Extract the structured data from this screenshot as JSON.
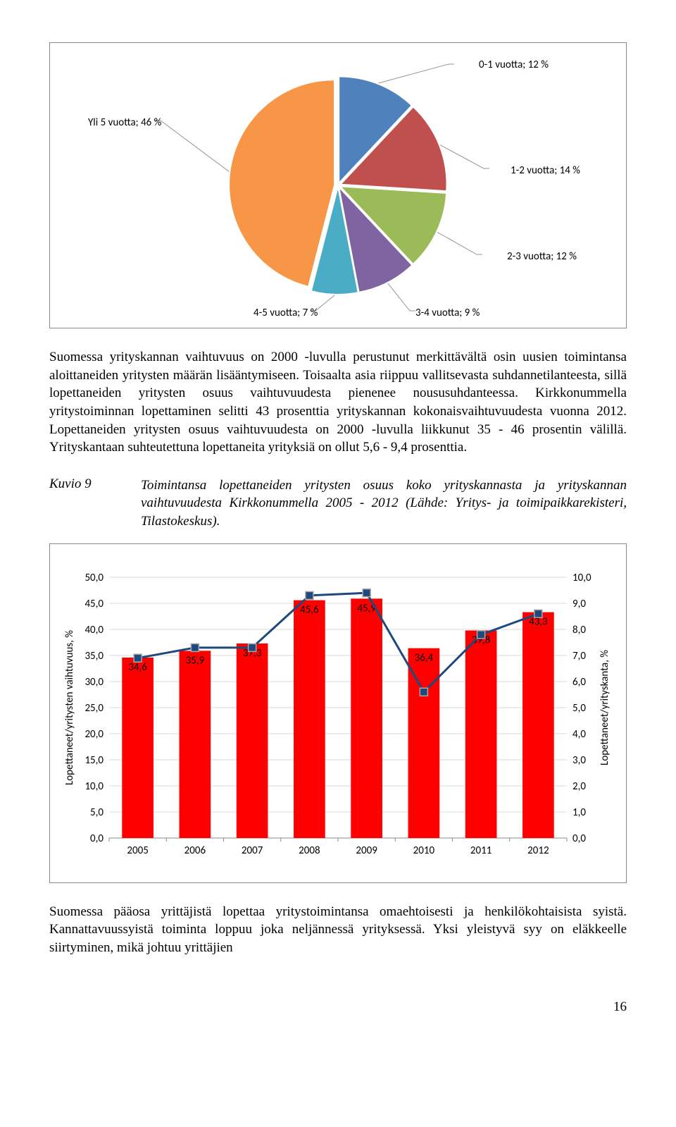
{
  "pie_chart": {
    "type": "pie",
    "explode": 0.04,
    "start_angle_deg": 90,
    "slices": [
      {
        "label": "0-1 vuotta; 12 %",
        "value": 12,
        "color": "#4f81bd"
      },
      {
        "label": "1-2 vuotta; 14 %",
        "value": 14,
        "color": "#c0504d"
      },
      {
        "label": "2-3 vuotta; 12 %",
        "value": 12,
        "color": "#9bbb59"
      },
      {
        "label": "3-4 vuotta; 9 %",
        "value": 9,
        "color": "#8064a2"
      },
      {
        "label": "4-5 vuotta; 7 %",
        "value": 7,
        "color": "#4bacc6"
      },
      {
        "label": "Yli 5 vuotta; 46 %",
        "value": 46,
        "color": "#f79646"
      }
    ],
    "label_font": "Calibri",
    "label_fontsize": 15,
    "leader_color": "#969696",
    "border_color": "#888888",
    "background_color": "#ffffff"
  },
  "para1": "Suomessa yrityskannan vaihtuvuus on 2000 -luvulla perustunut merkittävältä osin uusien toimintansa aloittaneiden yritysten määrän lisääntymiseen. Toisaalta asia riippuu vallitsevasta suhdannetilanteesta, sillä lopettaneiden yritysten osuus vaihtuvuudesta pienenee noususuhdanteessa. Kirkkonummella yritystoiminnan lopettaminen selitti 43 prosenttia yrityskannan kokonaisvaihtuvuudesta vuonna 2012. Lopettaneiden yritysten osuus vaihtuvuudesta on 2000 -luvulla liikkunut 35 - 46 prosentin välillä. Yrityskantaan suhteutettuna lopettaneita yrityksiä on ollut 5,6 - 9,4 prosenttia.",
  "figure_label": "Kuvio 9",
  "figure_caption": "Toimintansa lopettaneiden yritysten osuus koko yrityskannasta ja yrityskannan vaihtuvuudesta Kirkkonummella 2005 - 2012 (Lähde: Yritys- ja toimipaikkarekisteri, Tilastokeskus).",
  "combo_chart": {
    "type": "bar+line",
    "categories": [
      "2005",
      "2006",
      "2007",
      "2008",
      "2009",
      "2010",
      "2011",
      "2012"
    ],
    "bars": {
      "values": [
        34.6,
        35.9,
        37.3,
        45.6,
        45.9,
        36.4,
        39.8,
        43.3
      ],
      "color": "#ff0000",
      "data_label_color": "#000000",
      "data_label_fontsize": 14,
      "bar_width": 0.55
    },
    "line": {
      "values": [
        6.9,
        7.3,
        7.3,
        9.3,
        9.4,
        5.6,
        7.8,
        8.6
      ],
      "color": "#1f497d",
      "marker": "square",
      "marker_size": 11,
      "marker_fill": "#1f497d",
      "marker_border": "#a6a6a6",
      "line_width": 3
    },
    "y_left": {
      "min": 0,
      "max": 50,
      "step": 5,
      "label": "Lopettaneet/yritysten vaihtuvuus, %"
    },
    "y_right": {
      "min": 0,
      "max": 10,
      "step": 1,
      "label": "Lopettaneet/yrityskanta, %"
    },
    "grid_color": "#d9d9d9",
    "plot_border_color": "#888888",
    "background_color": "#ffffff",
    "axis_font": "Calibri",
    "axis_fontsize": 15
  },
  "para2": "Suomessa pääosa yrittäjistä lopettaa yritystoimintansa omaehtoisesti ja henkilökohtaisista syistä. Kannattavuussyistä toiminta loppuu joka neljännessä yrityksessä. Yksi yleistyvä syy on eläkkeelle siirtyminen, mikä johtuu yrittäjien",
  "page_number": "16"
}
